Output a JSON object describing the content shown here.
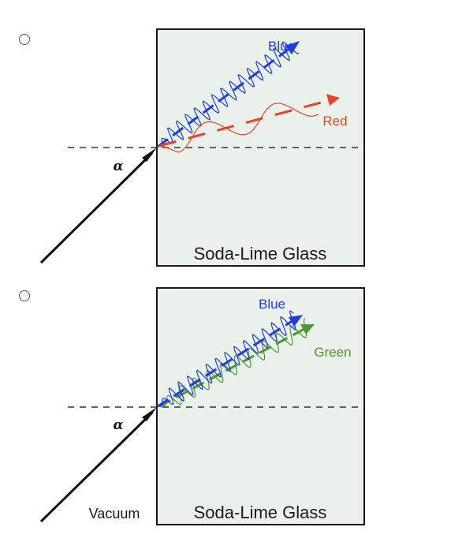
{
  "options": [
    {
      "glass_label": "Soda-Lime Glass",
      "angle_label": "α",
      "ray_a_label": "Blue",
      "ray_b_label": "Red",
      "medium_label": ""
    },
    {
      "glass_label": "Soda-Lime Glass",
      "angle_label": "α",
      "ray_a_label": "Blue",
      "ray_b_label": "Green",
      "medium_label": "Vacuum"
    }
  ],
  "colors": {
    "glass_fill": "#eaf1ea",
    "glass_border": "#1a1a1a",
    "blue": "#1e3ce6",
    "red": "#e6452a",
    "green": "#4a9a2e",
    "incident": "#111111"
  }
}
